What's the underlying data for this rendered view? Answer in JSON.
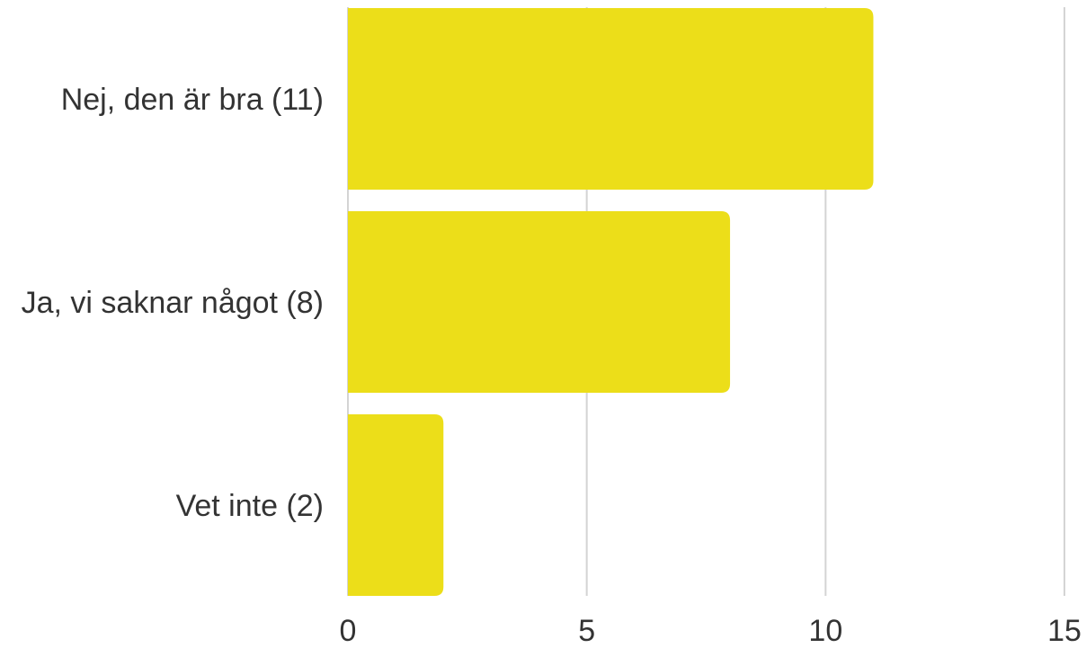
{
  "chart_data": {
    "type": "bar",
    "orientation": "horizontal",
    "categories": [
      "Nej, den är bra (11)",
      "Ja, vi saknar något (8)",
      "Vet inte (2)"
    ],
    "values": [
      11,
      8,
      2
    ],
    "xlim": [
      0,
      15
    ],
    "x_ticks": [
      0,
      5,
      10,
      15
    ],
    "x_tick_labels": [
      "0",
      "5",
      "10",
      "15"
    ],
    "grid": true,
    "legend": "none",
    "bar_color": "#ECDE19",
    "grid_color": "#D4D4D4",
    "text_color": "#333333"
  }
}
